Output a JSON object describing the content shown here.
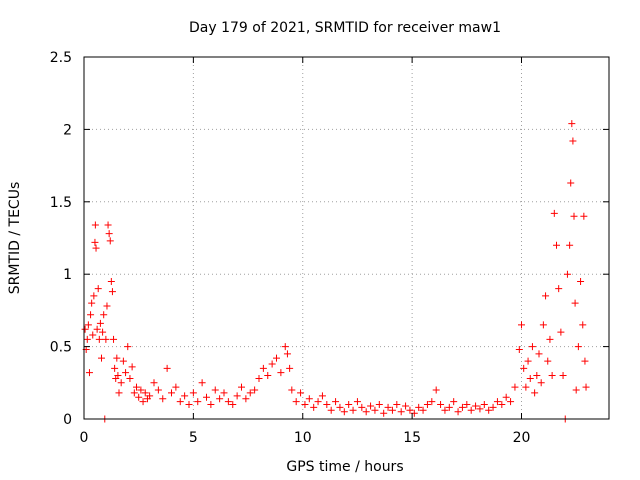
{
  "chart_data": {
    "type": "scatter",
    "title": "Day 179 of 2021, SRMTID for receiver maw1",
    "xlabel": "GPS time / hours",
    "ylabel": "SRMTID / TECUs",
    "xlim": [
      0,
      24
    ],
    "ylim": [
      0,
      2.5
    ],
    "x_ticks": [
      0,
      5,
      10,
      15,
      20
    ],
    "x_tick_labels": [
      "0",
      "5",
      "10",
      "15",
      "20"
    ],
    "y_ticks": [
      0,
      0.5,
      1,
      1.5,
      2,
      2.5
    ],
    "y_tick_labels": [
      "0",
      "0.5",
      "1",
      "1.5",
      "2",
      "2.5"
    ],
    "grid": true,
    "marker": "+",
    "series": [
      {
        "name": "SRMTID",
        "color": "#ff0000",
        "points": [
          [
            0.05,
            0.62
          ],
          [
            0.1,
            0.48
          ],
          [
            0.15,
            0.55
          ],
          [
            0.2,
            0.65
          ],
          [
            0.25,
            0.32
          ],
          [
            0.3,
            0.72
          ],
          [
            0.35,
            0.8
          ],
          [
            0.4,
            0.58
          ],
          [
            0.45,
            0.85
          ],
          [
            0.5,
            1.22
          ],
          [
            0.52,
            1.34
          ],
          [
            0.55,
            1.18
          ],
          [
            0.6,
            0.62
          ],
          [
            0.65,
            0.9
          ],
          [
            0.7,
            0.55
          ],
          [
            0.75,
            0.66
          ],
          [
            0.8,
            0.42
          ],
          [
            0.85,
            0.6
          ],
          [
            0.9,
            0.72
          ],
          [
            0.95,
            0.0
          ],
          [
            1.0,
            0.55
          ],
          [
            1.05,
            0.78
          ],
          [
            1.1,
            1.34
          ],
          [
            1.15,
            1.28
          ],
          [
            1.2,
            1.23
          ],
          [
            1.25,
            0.95
          ],
          [
            1.3,
            0.88
          ],
          [
            1.35,
            0.55
          ],
          [
            1.4,
            0.35
          ],
          [
            1.45,
            0.28
          ],
          [
            1.5,
            0.42
          ],
          [
            1.55,
            0.3
          ],
          [
            1.6,
            0.18
          ],
          [
            1.7,
            0.25
          ],
          [
            1.8,
            0.4
          ],
          [
            1.9,
            0.32
          ],
          [
            2.0,
            0.5
          ],
          [
            2.1,
            0.28
          ],
          [
            2.2,
            0.36
          ],
          [
            2.3,
            0.18
          ],
          [
            2.4,
            0.22
          ],
          [
            2.5,
            0.15
          ],
          [
            2.6,
            0.2
          ],
          [
            2.7,
            0.12
          ],
          [
            2.8,
            0.18
          ],
          [
            2.9,
            0.14
          ],
          [
            3.0,
            0.16
          ],
          [
            3.2,
            0.25
          ],
          [
            3.4,
            0.2
          ],
          [
            3.6,
            0.14
          ],
          [
            3.8,
            0.35
          ],
          [
            4.0,
            0.18
          ],
          [
            4.2,
            0.22
          ],
          [
            4.4,
            0.12
          ],
          [
            4.6,
            0.16
          ],
          [
            4.8,
            0.1
          ],
          [
            5.0,
            0.18
          ],
          [
            5.2,
            0.12
          ],
          [
            5.4,
            0.25
          ],
          [
            5.6,
            0.15
          ],
          [
            5.8,
            0.1
          ],
          [
            6.0,
            0.2
          ],
          [
            6.2,
            0.14
          ],
          [
            6.4,
            0.18
          ],
          [
            6.6,
            0.12
          ],
          [
            6.8,
            0.1
          ],
          [
            7.0,
            0.16
          ],
          [
            7.2,
            0.22
          ],
          [
            7.4,
            0.14
          ],
          [
            7.6,
            0.18
          ],
          [
            7.8,
            0.2
          ],
          [
            8.0,
            0.28
          ],
          [
            8.2,
            0.35
          ],
          [
            8.4,
            0.3
          ],
          [
            8.6,
            0.38
          ],
          [
            8.8,
            0.42
          ],
          [
            9.0,
            0.32
          ],
          [
            9.2,
            0.5
          ],
          [
            9.3,
            0.45
          ],
          [
            9.4,
            0.35
          ],
          [
            9.5,
            0.2
          ],
          [
            9.7,
            0.12
          ],
          [
            9.9,
            0.18
          ],
          [
            10.1,
            0.1
          ],
          [
            10.3,
            0.14
          ],
          [
            10.5,
            0.08
          ],
          [
            10.7,
            0.12
          ],
          [
            10.9,
            0.16
          ],
          [
            11.1,
            0.1
          ],
          [
            11.3,
            0.06
          ],
          [
            11.5,
            0.12
          ],
          [
            11.7,
            0.08
          ],
          [
            11.9,
            0.05
          ],
          [
            12.1,
            0.1
          ],
          [
            12.3,
            0.06
          ],
          [
            12.5,
            0.12
          ],
          [
            12.7,
            0.08
          ],
          [
            12.9,
            0.05
          ],
          [
            13.1,
            0.09
          ],
          [
            13.3,
            0.06
          ],
          [
            13.5,
            0.1
          ],
          [
            13.7,
            0.04
          ],
          [
            13.9,
            0.08
          ],
          [
            14.1,
            0.06
          ],
          [
            14.3,
            0.1
          ],
          [
            14.5,
            0.05
          ],
          [
            14.7,
            0.09
          ],
          [
            14.9,
            0.06
          ],
          [
            15.1,
            0.04
          ],
          [
            15.3,
            0.08
          ],
          [
            15.5,
            0.06
          ],
          [
            15.7,
            0.1
          ],
          [
            15.9,
            0.12
          ],
          [
            16.1,
            0.2
          ],
          [
            16.3,
            0.1
          ],
          [
            16.5,
            0.06
          ],
          [
            16.7,
            0.08
          ],
          [
            16.9,
            0.12
          ],
          [
            17.1,
            0.05
          ],
          [
            17.3,
            0.08
          ],
          [
            17.5,
            0.1
          ],
          [
            17.7,
            0.06
          ],
          [
            17.9,
            0.09
          ],
          [
            18.1,
            0.07
          ],
          [
            18.3,
            0.1
          ],
          [
            18.5,
            0.06
          ],
          [
            18.7,
            0.08
          ],
          [
            18.9,
            0.12
          ],
          [
            19.1,
            0.1
          ],
          [
            19.3,
            0.15
          ],
          [
            19.5,
            0.12
          ],
          [
            19.7,
            0.22
          ],
          [
            19.9,
            0.48
          ],
          [
            20.0,
            0.65
          ],
          [
            20.1,
            0.35
          ],
          [
            20.2,
            0.22
          ],
          [
            20.3,
            0.4
          ],
          [
            20.4,
            0.28
          ],
          [
            20.5,
            0.5
          ],
          [
            20.6,
            0.18
          ],
          [
            20.7,
            0.3
          ],
          [
            20.8,
            0.45
          ],
          [
            20.9,
            0.25
          ],
          [
            21.0,
            0.65
          ],
          [
            21.1,
            0.85
          ],
          [
            21.2,
            0.4
          ],
          [
            21.3,
            0.55
          ],
          [
            21.4,
            0.3
          ],
          [
            21.5,
            1.42
          ],
          [
            21.6,
            1.2
          ],
          [
            21.7,
            0.9
          ],
          [
            21.8,
            0.6
          ],
          [
            21.9,
            0.3
          ],
          [
            22.0,
            0.0
          ],
          [
            22.1,
            1.0
          ],
          [
            22.2,
            1.2
          ],
          [
            22.25,
            1.63
          ],
          [
            22.3,
            2.04
          ],
          [
            22.35,
            1.92
          ],
          [
            22.4,
            1.4
          ],
          [
            22.45,
            0.8
          ],
          [
            22.5,
            0.2
          ],
          [
            22.6,
            0.5
          ],
          [
            22.7,
            0.95
          ],
          [
            22.8,
            0.65
          ],
          [
            22.85,
            1.4
          ],
          [
            22.9,
            0.4
          ],
          [
            22.95,
            0.22
          ]
        ]
      }
    ]
  }
}
